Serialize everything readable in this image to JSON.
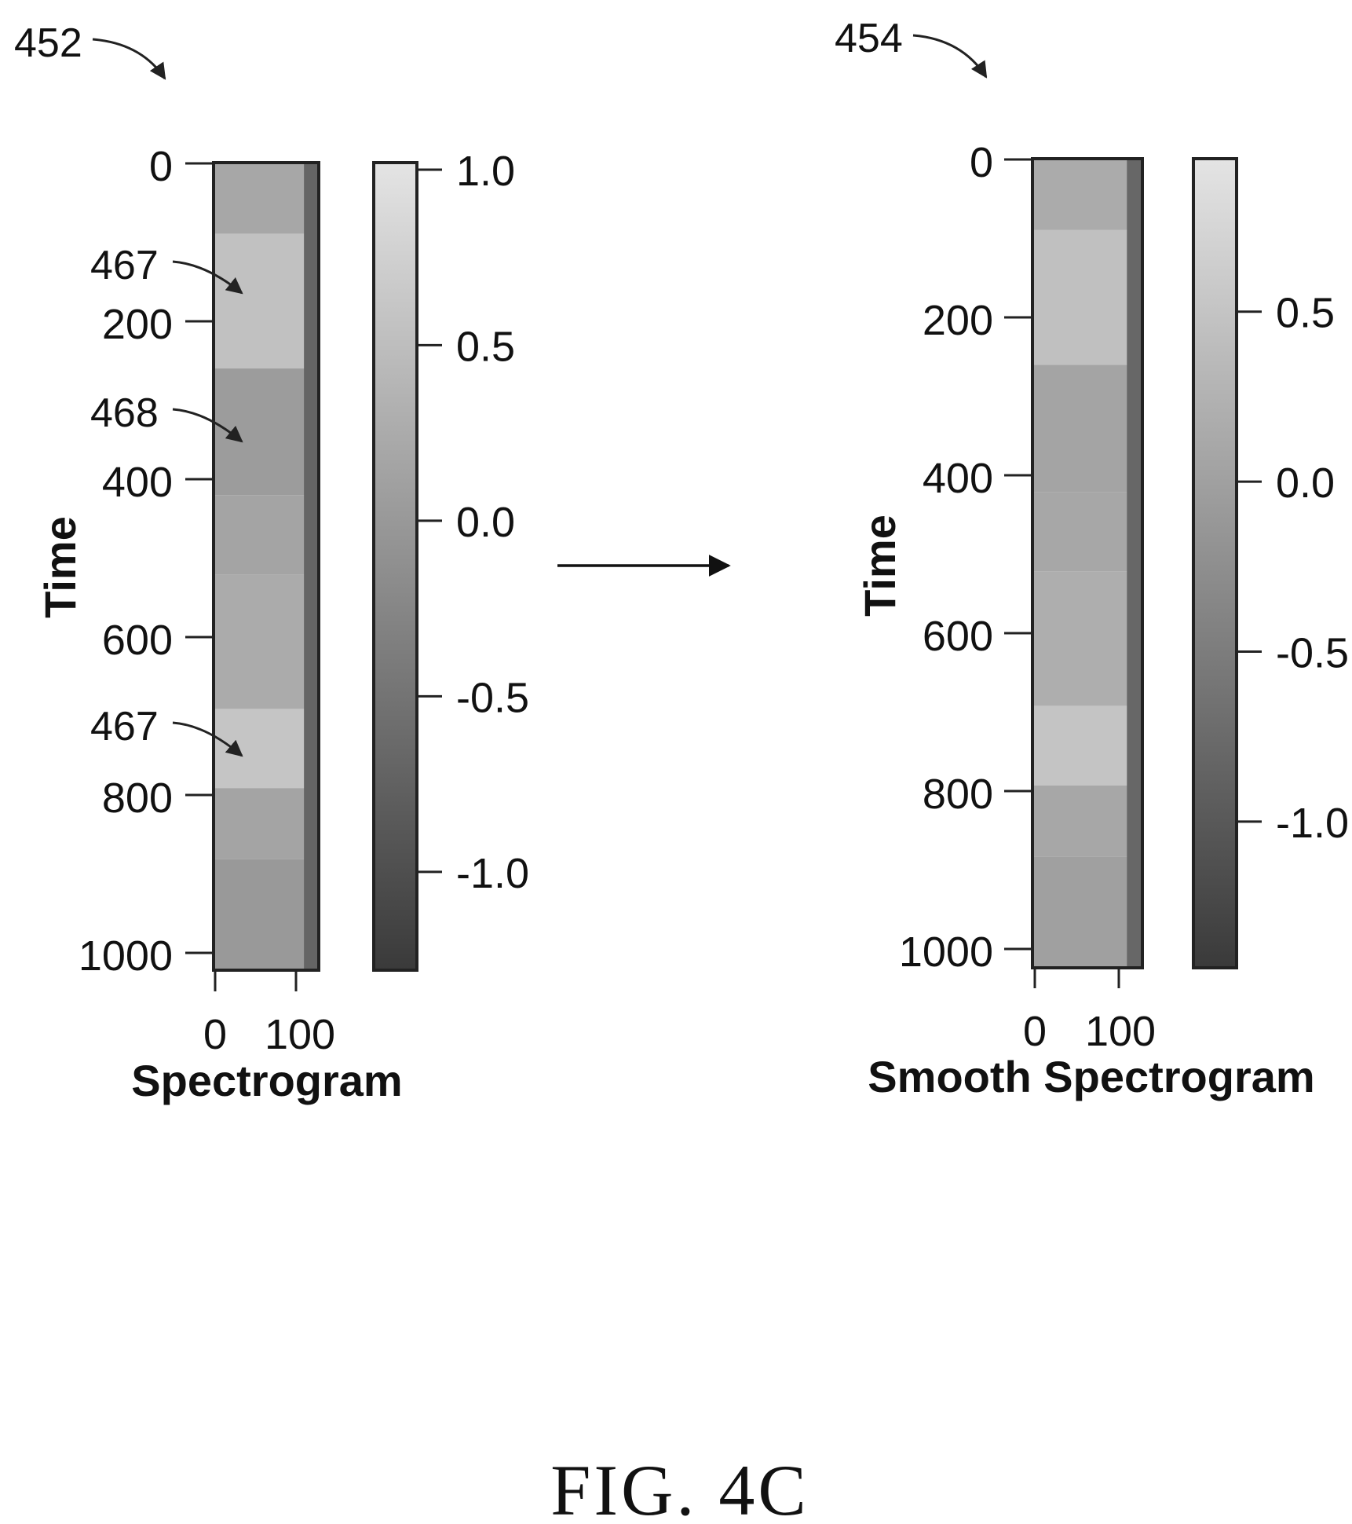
{
  "figure": {
    "caption": "FIG. 4C",
    "flow_arrow": "arrow-right"
  },
  "chart_data": [
    {
      "type": "heatmap",
      "ref": "452",
      "title": "",
      "xlabel": "Spectrogram",
      "ylabel": "Time",
      "x_ticks": [
        "0",
        "100"
      ],
      "x_tick_values": [
        0,
        100
      ],
      "xlim": [
        0,
        128
      ],
      "y_ticks": [
        "0",
        "200",
        "400",
        "600",
        "800",
        "1000"
      ],
      "y_tick_values": [
        0,
        200,
        400,
        600,
        800,
        1000
      ],
      "ylim": [
        0,
        1020
      ],
      "y_reversed": true,
      "colorbar": {
        "ticks": [
          "1.0",
          "0.5",
          "0.0",
          "-0.5",
          "-1.0"
        ],
        "tick_values": [
          1.0,
          0.5,
          0.0,
          -0.5,
          -1.0
        ],
        "range": [
          -1.28,
          1.02
        ],
        "colormap": "grayscale",
        "low_color": "#3a3a3a",
        "high_color": "#e4e4e4"
      },
      "annotations": [
        {
          "label": "467",
          "x": 35,
          "y": 165
        },
        {
          "label": "468",
          "x": 35,
          "y": 355
        },
        {
          "label": "467",
          "x": 35,
          "y": 755
        }
      ],
      "regions": [
        {
          "t0": 0,
          "t1": 90,
          "value": 0.2
        },
        {
          "t0": 90,
          "t1": 260,
          "value": 0.55
        },
        {
          "t0": 260,
          "t1": 420,
          "value": 0.05
        },
        {
          "t0": 420,
          "t1": 520,
          "value": 0.15
        },
        {
          "t0": 520,
          "t1": 690,
          "value": 0.25
        },
        {
          "t0": 690,
          "t1": 790,
          "value": 0.6
        },
        {
          "t0": 790,
          "t1": 880,
          "value": 0.15
        },
        {
          "t0": 880,
          "t1": 1020,
          "value": 0.0
        }
      ],
      "high_freq_band": {
        "f0": 110,
        "value": -0.7
      }
    },
    {
      "type": "heatmap",
      "ref": "454",
      "title": "",
      "xlabel": "Smooth Spectrogram",
      "ylabel": "Time",
      "x_ticks": [
        "0",
        "100"
      ],
      "x_tick_values": [
        0,
        100
      ],
      "xlim": [
        0,
        128
      ],
      "y_ticks": [
        "0",
        "200",
        "400",
        "600",
        "800",
        "1000"
      ],
      "y_tick_values": [
        0,
        200,
        400,
        600,
        800,
        1000
      ],
      "ylim": [
        0,
        1020
      ],
      "y_reversed": true,
      "colorbar": {
        "ticks": [
          "0.5",
          "0.0",
          "-0.5",
          "-1.0"
        ],
        "tick_values": [
          0.5,
          0.0,
          -0.5,
          -1.0
        ],
        "range": [
          -1.43,
          0.95
        ],
        "colormap": "grayscale",
        "low_color": "#3a3a3a",
        "high_color": "#e4e4e4"
      },
      "annotations": [],
      "regions": [
        {
          "t0": 0,
          "t1": 90,
          "value": 0.15
        },
        {
          "t0": 90,
          "t1": 260,
          "value": 0.45
        },
        {
          "t0": 260,
          "t1": 420,
          "value": 0.05
        },
        {
          "t0": 420,
          "t1": 520,
          "value": 0.1
        },
        {
          "t0": 520,
          "t1": 690,
          "value": 0.2
        },
        {
          "t0": 690,
          "t1": 790,
          "value": 0.5
        },
        {
          "t0": 790,
          "t1": 880,
          "value": 0.1
        },
        {
          "t0": 880,
          "t1": 1020,
          "value": 0.0
        }
      ],
      "high_freq_band": {
        "f0": 110,
        "value": -0.8
      }
    }
  ]
}
